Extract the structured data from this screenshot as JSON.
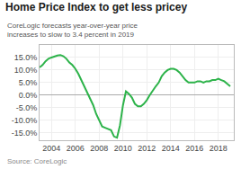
{
  "chart_data": {
    "type": "line",
    "title": "Home Price Index to get less pricey",
    "subtitle": "CoreLogic forecasts year-over-year price increases to slow to 3.4 percent in 2019",
    "source": "Source: CoreLogic",
    "x": [
      2003.0,
      2003.25,
      2003.5,
      2003.75,
      2004.0,
      2004.25,
      2004.5,
      2004.75,
      2005.0,
      2005.25,
      2005.5,
      2005.75,
      2006.0,
      2006.25,
      2006.5,
      2006.75,
      2007.0,
      2007.25,
      2007.5,
      2007.75,
      2008.0,
      2008.25,
      2008.5,
      2008.75,
      2009.0,
      2009.25,
      2009.5,
      2009.75,
      2010.0,
      2010.25,
      2010.5,
      2010.75,
      2011.0,
      2011.25,
      2011.5,
      2011.75,
      2012.0,
      2012.25,
      2012.5,
      2012.75,
      2013.0,
      2013.25,
      2013.5,
      2013.75,
      2014.0,
      2014.25,
      2014.5,
      2014.75,
      2015.0,
      2015.25,
      2015.5,
      2015.75,
      2016.0,
      2016.25,
      2016.5,
      2016.75,
      2017.0,
      2017.25,
      2017.5,
      2017.75,
      2018.0,
      2018.25,
      2018.5,
      2018.75,
      2019.0
    ],
    "values": [
      11.0,
      12.0,
      13.5,
      14.5,
      15.0,
      15.5,
      15.8,
      16.0,
      15.5,
      14.5,
      13.0,
      12.0,
      10.5,
      8.5,
      6.0,
      3.5,
      1.5,
      -1.0,
      -4.0,
      -7.5,
      -10.0,
      -12.5,
      -13.0,
      -13.5,
      -14.0,
      -16.5,
      -17.0,
      -12.0,
      -4.0,
      1.5,
      0.5,
      -1.0,
      -3.5,
      -4.5,
      -4.5,
      -3.5,
      -2.0,
      0.0,
      2.0,
      3.5,
      5.0,
      7.5,
      9.0,
      10.0,
      10.5,
      10.5,
      10.0,
      9.0,
      7.5,
      6.0,
      5.0,
      5.0,
      5.0,
      5.5,
      5.5,
      5.0,
      5.5,
      5.5,
      6.0,
      6.0,
      6.5,
      6.0,
      5.5,
      4.5,
      3.5
    ],
    "color": "#2db34a",
    "xlim": [
      2003.0,
      2019.3
    ],
    "xticks": [
      2004,
      2006,
      2008,
      2010,
      2012,
      2014,
      2016,
      2018
    ],
    "ylim": [
      -18,
      20
    ],
    "yticks": [
      {
        "value": -15,
        "label": "-15.0%"
      },
      {
        "value": -10,
        "label": "-10.0%"
      },
      {
        "value": -5,
        "label": "-5.0%"
      },
      {
        "value": 0,
        "label": "0.0%"
      },
      {
        "value": 5,
        "label": "5.0%"
      },
      {
        "value": 10,
        "label": "10.0%"
      },
      {
        "value": 15,
        "label": "15.0%"
      }
    ],
    "grid": true
  }
}
